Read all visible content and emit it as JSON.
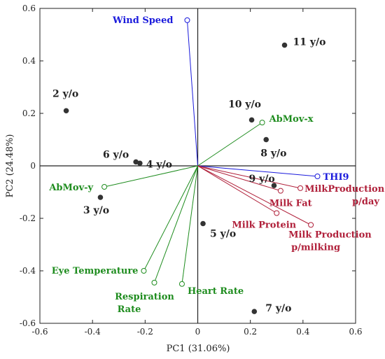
{
  "chart_data": {
    "type": "scatter",
    "subtype": "pca-biplot",
    "xlabel": "PC1 (31.06%)",
    "ylabel": "PC2 (24.48%)",
    "xlim": [
      -0.6,
      0.6
    ],
    "ylim": [
      -0.6,
      0.6
    ],
    "xticks": [
      "-0.6",
      "-0.4",
      "-0.2",
      "0",
      "0.2",
      "0.4",
      "0.6"
    ],
    "yticks": [
      "0.6",
      "0.4",
      "0.2",
      "0",
      "-0.2",
      "-0.4",
      "-0.6"
    ],
    "grid": false,
    "colors": {
      "point": "#333333",
      "env": "#1a1adc",
      "animal": "#1e8c1e",
      "milk": "#b0203a"
    },
    "observations": [
      {
        "label": "2 y/o",
        "x": -0.5,
        "y": 0.21
      },
      {
        "label": "3 y/o",
        "x": -0.37,
        "y": -0.12
      },
      {
        "label": "4 y/o",
        "x": -0.22,
        "y": 0.01
      },
      {
        "label": "5 y/o",
        "x": 0.02,
        "y": -0.22
      },
      {
        "label": "6 y/o",
        "x": -0.235,
        "y": 0.015
      },
      {
        "label": "7 y/o",
        "x": 0.215,
        "y": -0.555
      },
      {
        "label": "8 y/o",
        "x": 0.26,
        "y": 0.1
      },
      {
        "label": "9 y/o",
        "x": 0.29,
        "y": -0.075
      },
      {
        "label": "10 y/o",
        "x": 0.205,
        "y": 0.175
      },
      {
        "label": "11 y/o",
        "x": 0.33,
        "y": 0.46
      }
    ],
    "loadings": [
      {
        "label": "Wind Speed",
        "group": "env",
        "x": -0.04,
        "y": 0.555
      },
      {
        "label": "THI9",
        "group": "env",
        "x": 0.455,
        "y": -0.04
      },
      {
        "label": "AbMov-x",
        "group": "animal",
        "x": 0.245,
        "y": 0.165
      },
      {
        "label": "AbMov-y",
        "group": "animal",
        "x": -0.355,
        "y": -0.08
      },
      {
        "label": "Eye Temperature",
        "group": "animal",
        "x": -0.205,
        "y": -0.4
      },
      {
        "label": "Respiration Rate",
        "group": "animal",
        "x": -0.165,
        "y": -0.445
      },
      {
        "label": "Heart Rate",
        "group": "animal",
        "x": -0.06,
        "y": -0.45
      },
      {
        "label": "MilkProduction p/day",
        "group": "milk",
        "x": 0.39,
        "y": -0.085
      },
      {
        "label": "Milk Fat",
        "group": "milk",
        "x": 0.315,
        "y": -0.095
      },
      {
        "label": "Milk Protein",
        "group": "milk",
        "x": 0.3,
        "y": -0.18
      },
      {
        "label": "Milk Production p/milking",
        "group": "milk",
        "x": 0.43,
        "y": -0.225
      }
    ]
  }
}
